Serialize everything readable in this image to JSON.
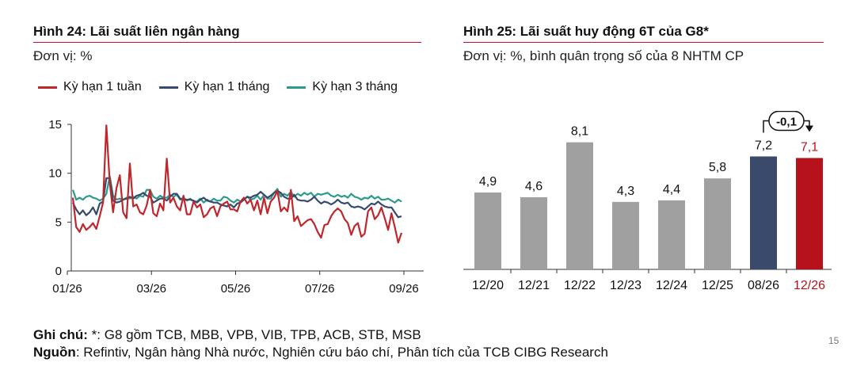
{
  "chart_data": [
    {
      "type": "line",
      "title": "Hình 24: Lãi suất liên ngân hàng",
      "unit": "Đơn vị: %",
      "x_ticks": [
        "01/26",
        "03/26",
        "05/26",
        "07/26",
        "09/26"
      ],
      "y_ticks": [
        "15",
        "10",
        "5",
        "0"
      ],
      "ylim": [
        0,
        15
      ],
      "legend_position": "top",
      "series": [
        {
          "name": "Kỳ hạn 1 tuần",
          "color": "#c0272d",
          "values": [
            7.5,
            4.5,
            4.0,
            4.8,
            4.2,
            4.5,
            4.9,
            4.3,
            5.6,
            7.0,
            14.9,
            9.0,
            6.0,
            8.5,
            9.8,
            6.0,
            5.4,
            11.0,
            6.6,
            6.8,
            6.0,
            5.8,
            6.7,
            8.3,
            5.9,
            5.6,
            6.9,
            6.2,
            11.5,
            7.0,
            7.5,
            6.6,
            6.2,
            7.7,
            5.8,
            5.8,
            7.1,
            6.5,
            6.8,
            5.5,
            5.8,
            6.4,
            6.6,
            5.6,
            6.6,
            6.9,
            7.1,
            6.3,
            6.3,
            6.1,
            7.1,
            7.5,
            6.9,
            7.3,
            6.2,
            7.2,
            5.8,
            7.5,
            5.9,
            7.1,
            7.5,
            8.2,
            6.1,
            6.5,
            6.1,
            8.3,
            5.1,
            5.6,
            4.6,
            4.9,
            5.2,
            5.3,
            4.8,
            4.0,
            3.4,
            4.7,
            4.8,
            5.6,
            6.1,
            6.4,
            6.1,
            5.3,
            4.9,
            3.7,
            4.6,
            4.9,
            3.5,
            3.8,
            6.1,
            6.5,
            5.3,
            5.7,
            6.5,
            5.4,
            4.2,
            5.9,
            4.5,
            2.9,
            3.9
          ]
        },
        {
          "name": "Kỳ hạn 1 tháng",
          "color": "#374a6d",
          "values": [
            7.0,
            6.3,
            5.8,
            6.2,
            5.7,
            6.0,
            6.5,
            5.8,
            6.9,
            7.1,
            9.5,
            9.5,
            7.2,
            7.0,
            7.1,
            7.3,
            7.4,
            7.6,
            7.4,
            7.7,
            7.8,
            8.0,
            7.7,
            7.6,
            7.0,
            7.2,
            7.4,
            7.4,
            7.2,
            7.6,
            7.9,
            7.9,
            7.4,
            7.3,
            7.3,
            7.3,
            7.2,
            7.0,
            7.3,
            7.5,
            7.2,
            7.1,
            7.0,
            7.0,
            6.8,
            6.7,
            6.6,
            6.8,
            6.5,
            6.9,
            7.0,
            7.3,
            7.6,
            7.5,
            7.7,
            7.8,
            8.1,
            7.8,
            7.5,
            7.7,
            8.0,
            8.2,
            8.0,
            7.6,
            7.4,
            7.4,
            7.8,
            7.3,
            7.2,
            7.2,
            7.1,
            7.3,
            7.6,
            7.2,
            6.9,
            7.1,
            7.0,
            6.8,
            7.0,
            7.3,
            7.0,
            6.9,
            7.0,
            6.6,
            6.5,
            6.6,
            6.5,
            6.3,
            6.6,
            6.9,
            6.8,
            7.1,
            6.8,
            6.6,
            6.5,
            6.5,
            6.0,
            5.5,
            5.6
          ]
        },
        {
          "name": "Kỳ hạn 3 tháng",
          "color": "#2d9b8a",
          "values": [
            8.3,
            7.3,
            7.5,
            7.3,
            7.6,
            7.7,
            7.5,
            7.4,
            7.2,
            7.4,
            7.9,
            9.7,
            7.7,
            7.3,
            7.4,
            7.3,
            7.5,
            7.4,
            7.6,
            7.4,
            7.7,
            7.6,
            8.3,
            8.3,
            7.6,
            7.4,
            7.7,
            7.5,
            7.5,
            7.8,
            7.6,
            7.8,
            7.3,
            7.5,
            7.2,
            7.4,
            7.1,
            7.1,
            7.4,
            7.0,
            7.3,
            7.1,
            7.4,
            7.2,
            7.2,
            7.6,
            7.5,
            7.2,
            7.0,
            7.3,
            7.1,
            7.3,
            7.6,
            7.3,
            7.4,
            7.7,
            7.3,
            7.8,
            7.4,
            7.4,
            8.0,
            8.4,
            7.6,
            7.9,
            7.7,
            8.1,
            7.6,
            7.9,
            7.7,
            8.0,
            7.8,
            8.0,
            7.6,
            7.9,
            7.8,
            7.9,
            8.0,
            7.7,
            7.6,
            7.8,
            7.6,
            7.7,
            7.5,
            7.9,
            7.6,
            7.5,
            7.3,
            7.5,
            7.4,
            7.7,
            7.4,
            7.6,
            7.3,
            7.3,
            7.4,
            7.2,
            7.0,
            7.3,
            7.1
          ]
        }
      ]
    },
    {
      "type": "bar",
      "title": "Hình 25: Lãi suất huy động 6T của G8*",
      "unit": "Đơn vị: %, bình quân trọng số của 8 NHTM CP",
      "categories": [
        "12/20",
        "12/21",
        "12/22",
        "12/23",
        "12/24",
        "12/25",
        "08/26",
        "12/26"
      ],
      "values": [
        4.9,
        4.6,
        8.1,
        4.3,
        4.4,
        5.8,
        7.2,
        7.1
      ],
      "value_labels": [
        "4,9",
        "4,6",
        "8,1",
        "4,3",
        "4,4",
        "5,8",
        "7,2",
        "7,1"
      ],
      "colors": [
        "#a0a0a0",
        "#a0a0a0",
        "#a0a0a0",
        "#a0a0a0",
        "#a0a0a0",
        "#a0a0a0",
        "#3a4a6b",
        "#b5121b"
      ],
      "category_label_colors": [
        "#111",
        "#111",
        "#111",
        "#111",
        "#111",
        "#111",
        "#111",
        "#b5121b"
      ],
      "value_label_colors": [
        "#111",
        "#111",
        "#111",
        "#111",
        "#111",
        "#111",
        "#111",
        "#b5121b"
      ],
      "annotation": "-0,1",
      "ylim": [
        0,
        10
      ]
    }
  ],
  "notes": {
    "note_label": "Ghi chú:",
    "note_text": " *: G8 gồm TCB, MBB, VPB, VIB, TPB, ACB, STB, MSB",
    "source_label": "Nguồn",
    "source_text": ": Refintiv, Ngân hàng Nhà nước, Nghiên cứu báo chí, Phân tích của TCB CIBG Research"
  },
  "page_number": "15"
}
